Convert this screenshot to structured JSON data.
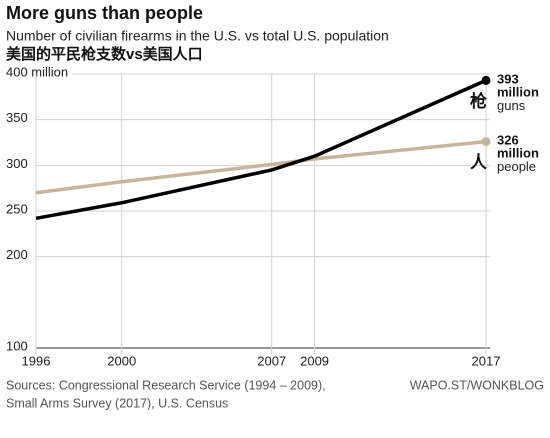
{
  "chart_data": {
    "type": "line",
    "title": "More guns than people",
    "subtitle": "Number of civilian firearms in the U.S. vs total U.S. population",
    "subtitle_zh": "美国的平民枪支数vs美国人口",
    "x": [
      1996,
      2000,
      2007,
      2009,
      2017
    ],
    "xlim": [
      1996,
      2017
    ],
    "xticks": [
      1996,
      2000,
      2007,
      2009,
      2017
    ],
    "ylim": [
      100,
      400
    ],
    "yticks": [
      100,
      200,
      250,
      300,
      350,
      {
        "value": 400,
        "label": "400 million"
      }
    ],
    "grid": true,
    "series": [
      {
        "name": "people",
        "name_zh": "人",
        "color": "#c8b49c",
        "values": [
          270,
          282,
          301,
          307,
          326
        ],
        "value_labels": [
          null,
          null,
          null,
          null,
          "326 million"
        ]
      },
      {
        "name": "guns",
        "name_zh": "枪",
        "color": "#000000",
        "values": [
          242,
          259,
          295,
          310,
          393
        ],
        "value_labels": [
          null,
          null,
          null,
          null,
          "393 million"
        ]
      }
    ],
    "source": [
      "Sources: Congressional Research Service (1994 – 2009),",
      "Small Arms Survey (2017), U.S. Census"
    ],
    "credit": "WAPO.ST/WONKBLOG"
  }
}
